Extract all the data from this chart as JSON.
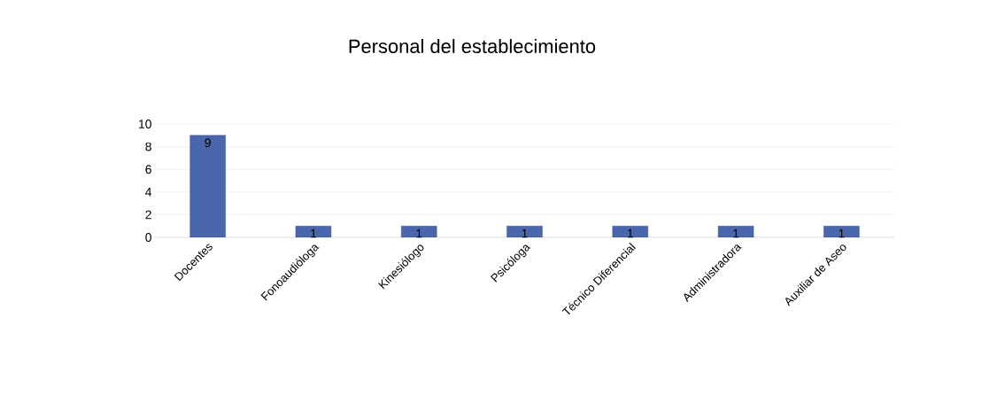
{
  "chart_data": {
    "type": "bar",
    "title": "Personal del establecimiento",
    "categories": [
      "Docentes",
      "Fonoaudióloga",
      "Kinesiólogo",
      "Psicóloga",
      "Técnico Diferencial",
      "Administradora",
      "Auxiliar de Aseo"
    ],
    "values": [
      9,
      1,
      1,
      1,
      1,
      1,
      1
    ],
    "color": "#4a66ac",
    "ylim": [
      0,
      10
    ],
    "yticks": [
      0,
      2,
      4,
      6,
      8,
      10
    ],
    "grid": "y",
    "data_labels": true
  }
}
